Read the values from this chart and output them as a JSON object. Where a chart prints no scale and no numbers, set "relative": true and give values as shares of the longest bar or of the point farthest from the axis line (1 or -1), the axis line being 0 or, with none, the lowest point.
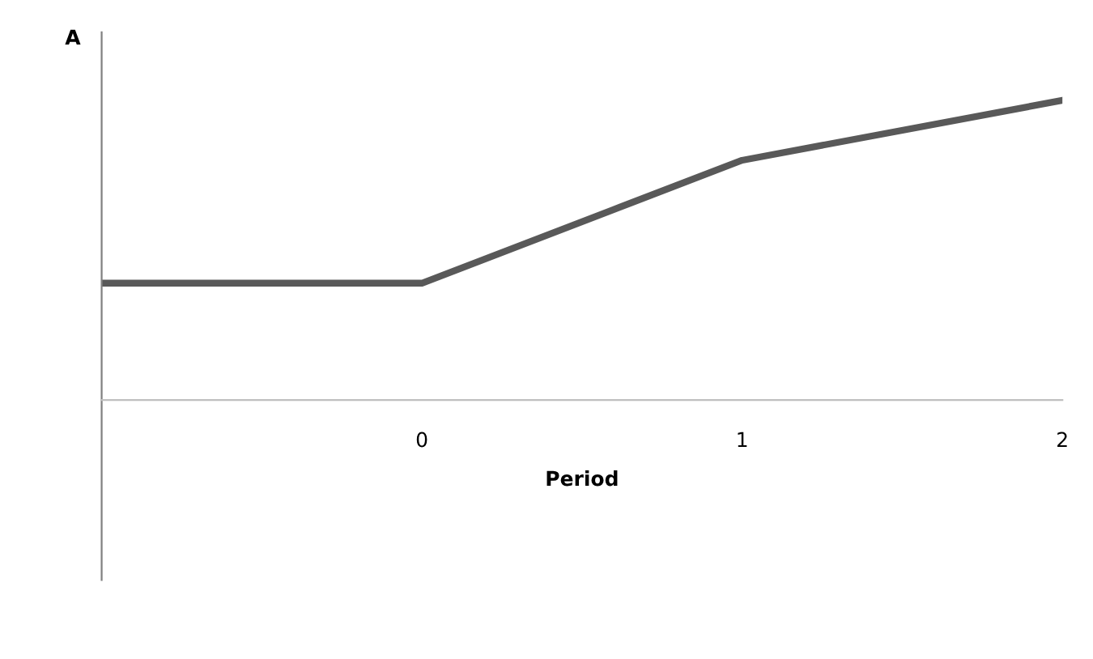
{
  "chart_data": {
    "type": "line",
    "ylabel": "A",
    "xlabel": "Period",
    "x": [
      -1,
      0,
      1,
      2
    ],
    "relative": true,
    "series": [
      {
        "color": "#595959",
        "values": [
          0.39,
          0.39,
          0.8,
          1
        ]
      }
    ],
    "xlim": [
      -1,
      2
    ],
    "xticks": [
      0,
      1,
      2
    ],
    "grid": false,
    "legend": false,
    "marker": "none",
    "line_style": "solid"
  }
}
